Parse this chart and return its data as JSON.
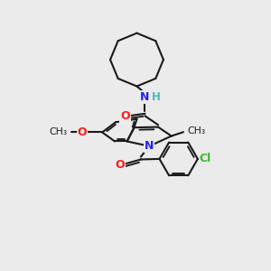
{
  "background_color": "#ebebeb",
  "bond_color": "#1a1a1a",
  "N_color": "#2020ff",
  "O_color": "#ff1a1a",
  "Cl_color": "#3cb832",
  "H_color": "#4db8b8",
  "lw": 1.5,
  "figsize": [
    3.0,
    3.0
  ],
  "dpi": 100,
  "xlim": [
    0,
    10
  ],
  "ylim": [
    0,
    10
  ]
}
